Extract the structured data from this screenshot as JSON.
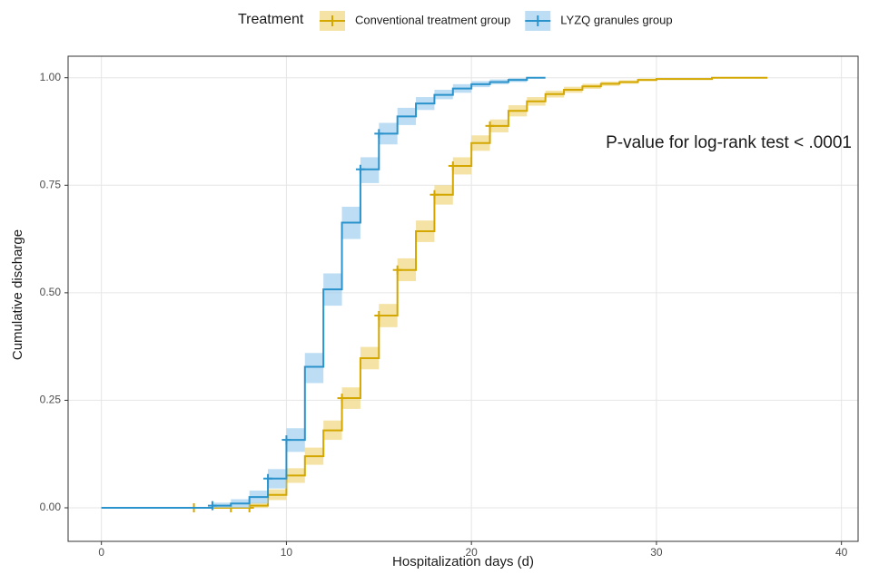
{
  "chart_data": {
    "type": "step",
    "xlabel": "Hospitalization days (d)",
    "ylabel": "Cumulative discharge",
    "legend_title": "Treatment",
    "legend_position": "top",
    "annotation": "P-value for log-rank test < .0001",
    "xlim": [
      -1.8,
      40.9
    ],
    "ylim": [
      -0.078,
      1.05
    ],
    "xticks": [
      0,
      10,
      20,
      30,
      40
    ],
    "yticks": [
      {
        "value": 0,
        "label": "0.00"
      },
      {
        "value": 0.25,
        "label": "0.25"
      },
      {
        "value": 0.5,
        "label": "0.50"
      },
      {
        "value": 0.75,
        "label": "0.75"
      },
      {
        "value": 1,
        "label": "1.00"
      }
    ],
    "grid": true,
    "series": [
      {
        "name": "Conventional treatment group",
        "color": "#d4a700",
        "band_color": "#f0d77e",
        "x": [
          0,
          8,
          9,
          10,
          11,
          12,
          13,
          14,
          15,
          16,
          17,
          18,
          19,
          20,
          21,
          22,
          23,
          24,
          25,
          26,
          27,
          28,
          29,
          30,
          33,
          36
        ],
        "values": [
          0,
          0.005,
          0.03,
          0.075,
          0.12,
          0.18,
          0.255,
          0.348,
          0.447,
          0.553,
          0.643,
          0.728,
          0.795,
          0.848,
          0.888,
          0.923,
          0.945,
          0.962,
          0.972,
          0.98,
          0.986,
          0.99,
          0.995,
          0.997,
          1.0,
          1.0
        ],
        "lower": [
          0,
          0,
          0.018,
          0.058,
          0.1,
          0.158,
          0.23,
          0.322,
          0.42,
          0.527,
          0.618,
          0.705,
          0.775,
          0.83,
          0.873,
          0.91,
          0.935,
          0.954,
          0.965,
          0.974,
          0.981,
          0.986,
          0.992,
          0.995,
          1.0,
          1.0
        ],
        "upper": [
          0,
          0.012,
          0.043,
          0.092,
          0.14,
          0.203,
          0.28,
          0.374,
          0.474,
          0.58,
          0.668,
          0.75,
          0.815,
          0.866,
          0.903,
          0.936,
          0.955,
          0.97,
          0.979,
          0.986,
          0.991,
          0.994,
          0.998,
          0.999,
          1.0,
          1.0
        ],
        "censor_x": [
          5,
          7,
          8,
          13,
          15,
          16,
          18,
          19,
          21
        ],
        "censor_values": [
          0,
          0,
          0,
          0.255,
          0.447,
          0.553,
          0.728,
          0.795,
          0.888
        ]
      },
      {
        "name": "LYZQ granules group",
        "color": "#2b93cc",
        "band_color": "#9fcfee",
        "x": [
          0,
          6,
          7,
          8,
          9,
          10,
          11,
          12,
          13,
          14,
          15,
          16,
          17,
          18,
          19,
          20,
          21,
          22,
          23,
          24
        ],
        "values": [
          0,
          0.005,
          0.01,
          0.025,
          0.068,
          0.158,
          0.328,
          0.508,
          0.663,
          0.787,
          0.87,
          0.91,
          0.94,
          0.96,
          0.975,
          0.985,
          0.99,
          0.995,
          1.0,
          1.0
        ],
        "lower": [
          0,
          0,
          0,
          0.01,
          0.045,
          0.13,
          0.29,
          0.47,
          0.625,
          0.755,
          0.845,
          0.89,
          0.925,
          0.95,
          0.965,
          0.978,
          0.985,
          0.99,
          1.0,
          1.0
        ],
        "upper": [
          0,
          0.012,
          0.02,
          0.04,
          0.09,
          0.185,
          0.36,
          0.545,
          0.7,
          0.815,
          0.895,
          0.93,
          0.955,
          0.972,
          0.985,
          0.992,
          0.996,
          0.999,
          1.0,
          1.0
        ],
        "censor_x": [
          6,
          9,
          10,
          14,
          15
        ],
        "censor_values": [
          0.005,
          0.068,
          0.158,
          0.787,
          0.87
        ]
      }
    ]
  }
}
